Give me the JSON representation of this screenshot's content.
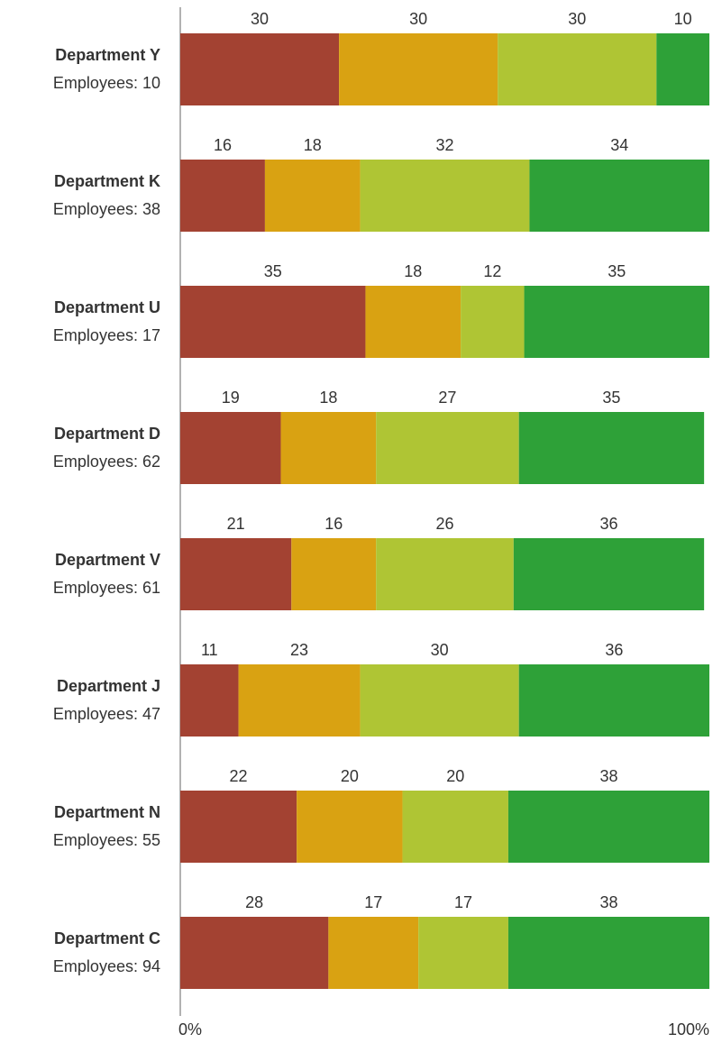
{
  "chart_data": {
    "type": "stacked_barh",
    "categories": [
      "Department Y",
      "Department K",
      "Department U",
      "Department D",
      "Department V",
      "Department J",
      "Department N",
      "Department C"
    ],
    "category_details": [
      "Employees: 10",
      "Employees: 38",
      "Employees: 17",
      "Employees: 62",
      "Employees: 61",
      "Employees: 47",
      "Employees: 55",
      "Employees: 94"
    ],
    "series": [
      {
        "color": "#a34232",
        "values": [
          30,
          16,
          35,
          19,
          21,
          11,
          22,
          28
        ]
      },
      {
        "color": "#d9a212",
        "values": [
          30,
          18,
          18,
          18,
          16,
          23,
          20,
          17
        ]
      },
      {
        "color": "#afc534",
        "values": [
          30,
          32,
          12,
          27,
          26,
          30,
          20,
          17
        ]
      },
      {
        "color": "#2ea138",
        "values": [
          10,
          34,
          35,
          35,
          36,
          36,
          38,
          38
        ]
      }
    ],
    "xlim": [
      0,
      100
    ],
    "xticks": [
      {
        "value": 0,
        "label": "0%"
      },
      {
        "value": 100,
        "label": "100%"
      }
    ]
  }
}
